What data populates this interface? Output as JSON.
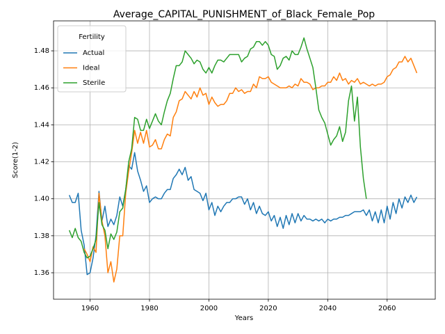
{
  "chart_data": {
    "type": "line",
    "title": "Average_CAPITAL_PUNISHMENT_of_Black_Female_Pop",
    "xlabel": "Years",
    "ylabel": "Score(1-2)",
    "legend_title": "Fertility",
    "legend_loc": "upper left",
    "xlim": [
      1947.7,
      2076.2
    ],
    "xticks": [
      1960,
      1980,
      2000,
      2020,
      2040,
      2060
    ],
    "ylim": [
      1.3457,
      1.4962
    ],
    "yticks": [
      {
        "value": 1.36,
        "label": "1.36"
      },
      {
        "value": 1.38,
        "label": "1.38"
      },
      {
        "value": 1.4,
        "label": "1.40"
      },
      {
        "value": 1.42,
        "label": "1.42"
      },
      {
        "value": 1.44,
        "label": "1.44"
      },
      {
        "value": 1.46,
        "label": "1.46"
      },
      {
        "value": 1.48,
        "label": "1.48"
      }
    ],
    "x": [
      1953,
      1954,
      1955,
      1956,
      1957,
      1958,
      1959,
      1960,
      1961,
      1962,
      1963,
      1964,
      1965,
      1966,
      1967,
      1968,
      1969,
      1970,
      1971,
      1972,
      1973,
      1974,
      1975,
      1976,
      1977,
      1978,
      1979,
      1980,
      1981,
      1982,
      1983,
      1984,
      1985,
      1986,
      1987,
      1988,
      1989,
      1990,
      1991,
      1992,
      1993,
      1994,
      1995,
      1996,
      1997,
      1998,
      1999,
      2000,
      2001,
      2002,
      2003,
      2004,
      2005,
      2006,
      2007,
      2008,
      2009,
      2010,
      2011,
      2012,
      2013,
      2014,
      2015,
      2016,
      2017,
      2018,
      2019,
      2020,
      2021,
      2022,
      2023,
      2024,
      2025,
      2026,
      2027,
      2028,
      2029,
      2030,
      2031,
      2032,
      2033,
      2034,
      2035,
      2036,
      2037,
      2038,
      2039,
      2040,
      2041,
      2042,
      2043,
      2044,
      2045,
      2046,
      2047,
      2048,
      2049,
      2050,
      2051,
      2052,
      2053,
      2054,
      2055,
      2056,
      2057,
      2058,
      2059,
      2060,
      2061,
      2062,
      2063,
      2064,
      2065,
      2066,
      2067,
      2068,
      2069,
      2070
    ],
    "series": [
      {
        "name": "Actual",
        "color": "#1f77b4",
        "values": [
          1.402,
          1.398,
          1.398,
          1.403,
          1.383,
          1.375,
          1.359,
          1.36,
          1.368,
          1.38,
          1.404,
          1.388,
          1.396,
          1.385,
          1.389,
          1.386,
          1.391,
          1.401,
          1.396,
          1.405,
          1.418,
          1.416,
          1.425,
          1.415,
          1.41,
          1.404,
          1.407,
          1.398,
          1.4,
          1.401,
          1.4,
          1.4,
          1.403,
          1.405,
          1.405,
          1.411,
          1.413,
          1.416,
          1.413,
          1.417,
          1.41,
          1.412,
          1.405,
          1.404,
          1.403,
          1.399,
          1.403,
          1.394,
          1.398,
          1.391,
          1.396,
          1.393,
          1.396,
          1.398,
          1.398,
          1.4,
          1.4,
          1.401,
          1.401,
          1.397,
          1.4,
          1.394,
          1.398,
          1.392,
          1.396,
          1.392,
          1.391,
          1.393,
          1.388,
          1.391,
          1.385,
          1.39,
          1.384,
          1.391,
          1.386,
          1.392,
          1.387,
          1.392,
          1.388,
          1.391,
          1.389,
          1.389,
          1.388,
          1.389,
          1.388,
          1.389,
          1.387,
          1.389,
          1.388,
          1.389,
          1.389,
          1.39,
          1.39,
          1.391,
          1.391,
          1.392,
          1.393,
          1.393,
          1.393,
          1.394,
          1.391,
          1.394,
          1.388,
          1.393,
          1.387,
          1.394,
          1.387,
          1.396,
          1.389,
          1.398,
          1.392,
          1.4,
          1.395,
          1.401,
          1.398,
          1.402,
          1.398,
          1.401
        ]
      },
      {
        "name": "Ideal",
        "color": "#ff7f0e",
        "values": [
          null,
          null,
          null,
          null,
          null,
          1.373,
          1.37,
          1.366,
          1.374,
          1.371,
          1.403,
          1.388,
          1.38,
          1.36,
          1.366,
          1.355,
          1.362,
          1.38,
          1.38,
          1.403,
          1.415,
          1.425,
          1.437,
          1.43,
          1.436,
          1.43,
          1.437,
          1.428,
          1.429,
          1.432,
          1.427,
          1.427,
          1.432,
          1.435,
          1.434,
          1.444,
          1.447,
          1.453,
          1.454,
          1.458,
          1.456,
          1.454,
          1.458,
          1.455,
          1.46,
          1.456,
          1.457,
          1.451,
          1.455,
          1.452,
          1.45,
          1.451,
          1.451,
          1.453,
          1.457,
          1.457,
          1.46,
          1.458,
          1.459,
          1.457,
          1.458,
          1.458,
          1.462,
          1.46,
          1.466,
          1.465,
          1.465,
          1.466,
          1.463,
          1.462,
          1.461,
          1.46,
          1.46,
          1.46,
          1.461,
          1.46,
          1.462,
          1.461,
          1.465,
          1.463,
          1.463,
          1.462,
          1.459,
          1.46,
          1.46,
          1.461,
          1.461,
          1.463,
          1.463,
          1.466,
          1.464,
          1.468,
          1.464,
          1.465,
          1.462,
          1.464,
          1.463,
          1.465,
          1.462,
          1.463,
          1.462,
          1.461,
          1.462,
          1.461,
          1.462,
          1.462,
          1.463,
          1.466,
          1.467,
          1.47,
          1.471,
          1.474,
          1.474,
          1.477,
          1.474,
          1.476,
          1.472,
          1.468
        ]
      },
      {
        "name": "Sterile",
        "color": "#2ca02c",
        "values": [
          1.383,
          1.379,
          1.384,
          1.379,
          1.377,
          1.371,
          1.368,
          1.369,
          1.373,
          1.378,
          1.398,
          1.386,
          1.383,
          1.373,
          1.381,
          1.378,
          1.382,
          1.393,
          1.395,
          1.405,
          1.42,
          1.427,
          1.444,
          1.443,
          1.437,
          1.437,
          1.443,
          1.438,
          1.442,
          1.446,
          1.442,
          1.44,
          1.447,
          1.453,
          1.457,
          1.465,
          1.472,
          1.472,
          1.474,
          1.48,
          1.478,
          1.476,
          1.473,
          1.475,
          1.474,
          1.47,
          1.468,
          1.471,
          1.468,
          1.472,
          1.475,
          1.475,
          1.474,
          1.476,
          1.478,
          1.478,
          1.478,
          1.478,
          1.474,
          1.476,
          1.477,
          1.481,
          1.482,
          1.485,
          1.485,
          1.483,
          1.485,
          1.483,
          1.478,
          1.477,
          1.47,
          1.472,
          1.476,
          1.477,
          1.475,
          1.48,
          1.478,
          1.478,
          1.482,
          1.487,
          1.481,
          1.476,
          1.471,
          1.46,
          1.448,
          1.444,
          1.441,
          1.435,
          1.429,
          1.432,
          1.434,
          1.439,
          1.431,
          1.436,
          1.453,
          1.461,
          1.442,
          1.455,
          1.428,
          1.411,
          1.4,
          null,
          null,
          null,
          null,
          null,
          null,
          null,
          null,
          null,
          null,
          null,
          null,
          null,
          null,
          null,
          null,
          null
        ]
      }
    ]
  }
}
